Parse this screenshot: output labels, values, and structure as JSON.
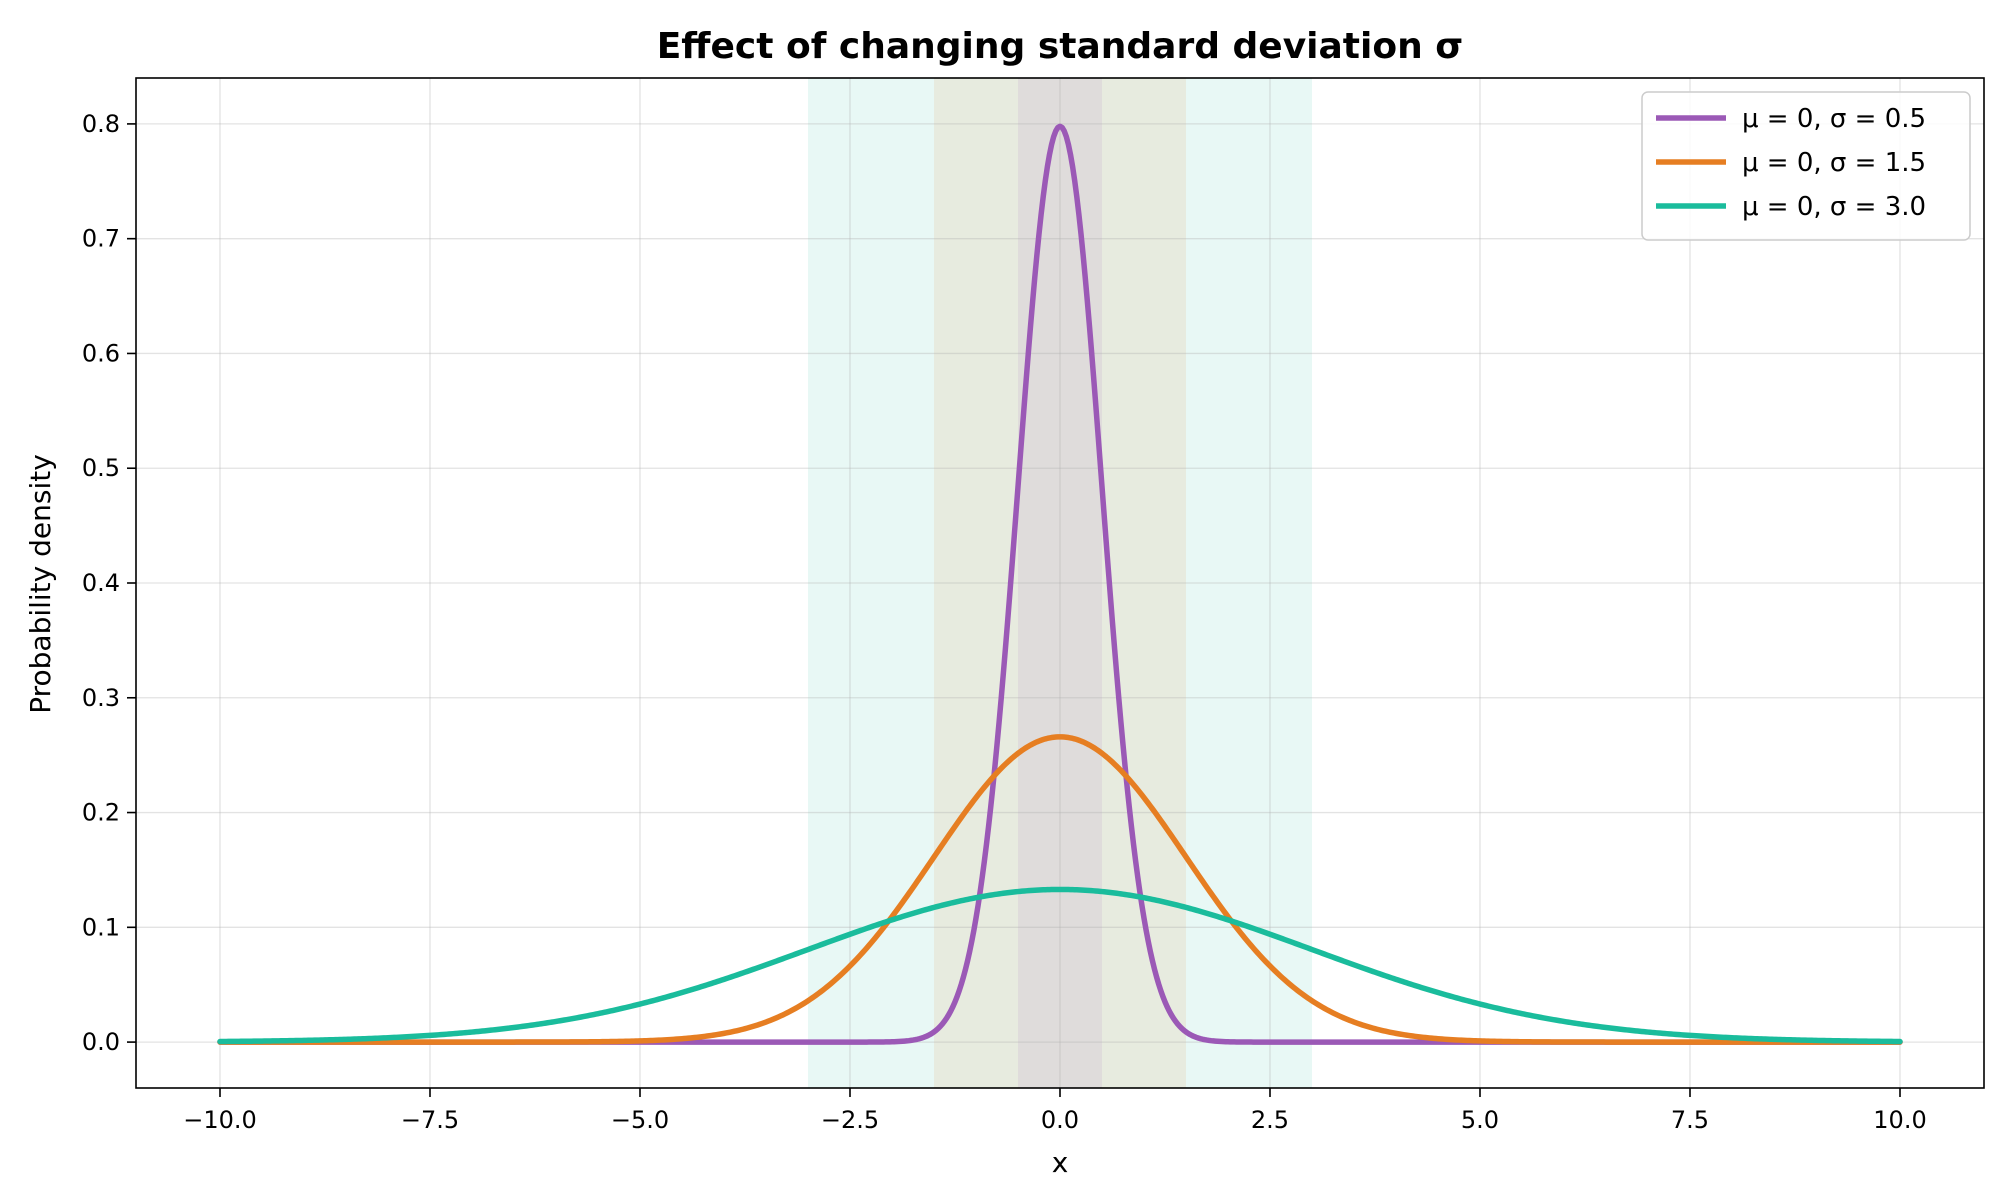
{
  "chart_data": {
    "type": "line",
    "title": "Effect of changing standard deviation σ",
    "xlabel": "x",
    "ylabel": "Probability density",
    "xlim": [
      -11,
      11
    ],
    "ylim": [
      -0.04,
      0.84
    ],
    "x_domain": [
      -10,
      10
    ],
    "x_ticks": [
      -10,
      -7.5,
      -5,
      -2.5,
      0,
      2.5,
      5,
      7.5,
      10
    ],
    "x_tick_labels": [
      "−10.0",
      "−7.5",
      "−5.0",
      "−2.5",
      "0.0",
      "2.5",
      "5.0",
      "7.5",
      "10.0"
    ],
    "y_ticks": [
      0,
      0.1,
      0.2,
      0.3,
      0.4,
      0.5,
      0.6,
      0.7,
      0.8
    ],
    "y_tick_labels": [
      "0.0",
      "0.1",
      "0.2",
      "0.3",
      "0.4",
      "0.5",
      "0.6",
      "0.7",
      "0.8"
    ],
    "grid": true,
    "legend_position": "top-right",
    "series": [
      {
        "name": "μ = 0, σ = 0.5",
        "mu": 0,
        "sigma": 0.5,
        "color": "#9b59b6",
        "band_color": "#8c8c8c",
        "peak": 0.798
      },
      {
        "name": "μ = 0, σ = 1.5",
        "mu": 0,
        "sigma": 1.5,
        "color": "#e67e22",
        "band_color": "#d9c8a0",
        "peak": 0.266
      },
      {
        "name": "μ = 0, σ = 3.0",
        "mu": 0,
        "sigma": 3.0,
        "color": "#1abc9c",
        "band_color": "#7fd8c4",
        "peak": 0.133
      }
    ],
    "shaded_bands": [
      {
        "from": -3.0,
        "to": 3.0,
        "color": "#1abc9c"
      },
      {
        "from": -1.5,
        "to": 1.5,
        "color": "#e67e22"
      },
      {
        "from": -0.5,
        "to": 0.5,
        "color": "#9b59b6"
      }
    ]
  }
}
